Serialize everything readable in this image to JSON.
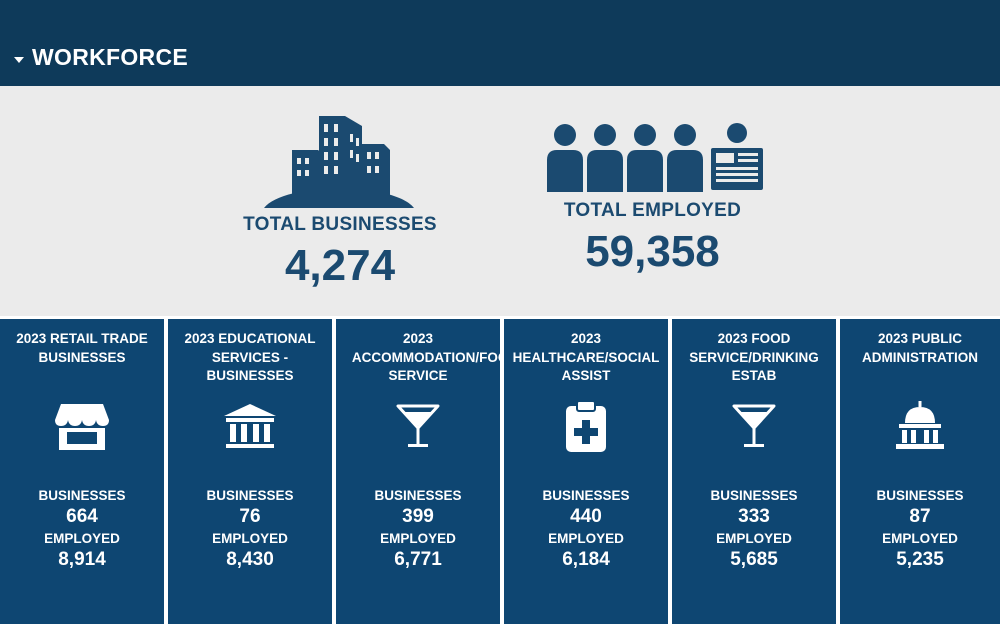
{
  "header": {
    "title": "WORKFORCE"
  },
  "summary": {
    "total_businesses_label": "TOTAL BUSINESSES",
    "total_businesses_value": "4,274",
    "total_employed_label": "TOTAL EMPLOYED",
    "total_employed_value": "59,358"
  },
  "cards": [
    {
      "title": [
        "2023 RETAIL TRADE",
        "BUSINESSES"
      ],
      "icon": "storefront-icon",
      "businesses_label": "BUSINESSES",
      "businesses": "664",
      "employed_label": "EMPLOYED",
      "employed": "8,914"
    },
    {
      "title": [
        "2023 EDUCATIONAL",
        "SERVICES -",
        "BUSINESSES"
      ],
      "icon": "bank-building-icon",
      "businesses_label": "BUSINESSES",
      "businesses": "76",
      "employed_label": "EMPLOYED",
      "employed": "8,430"
    },
    {
      "title": [
        "2023",
        "ACCOMMODATION/FOOD",
        "SERVICE"
      ],
      "icon": "cocktail-glass-icon",
      "businesses_label": "BUSINESSES",
      "businesses": "399",
      "employed_label": "EMPLOYED",
      "employed": "6,771"
    },
    {
      "title": [
        "2023",
        "HEALTHCARE/SOCIAL",
        "ASSIST"
      ],
      "icon": "medical-clipboard-icon",
      "businesses_label": "BUSINESSES",
      "businesses": "440",
      "employed_label": "EMPLOYED",
      "employed": "6,184"
    },
    {
      "title": [
        "2023 FOOD",
        "SERVICE/DRINKING",
        "ESTAB"
      ],
      "icon": "cocktail-glass-icon",
      "businesses_label": "BUSINESSES",
      "businesses": "333",
      "employed_label": "EMPLOYED",
      "employed": "5,685"
    },
    {
      "title": [
        "2023 PUBLIC",
        "ADMINISTRATION"
      ],
      "icon": "capitol-building-icon",
      "businesses_label": "BUSINESSES",
      "businesses": "87",
      "employed_label": "EMPLOYED",
      "employed": "5,235"
    }
  ],
  "colors": {
    "header_bg": "#0e3a5a",
    "card_bg": "#0e4672",
    "summary_bg": "#ebebeb",
    "accent_text": "#1b4a70"
  }
}
